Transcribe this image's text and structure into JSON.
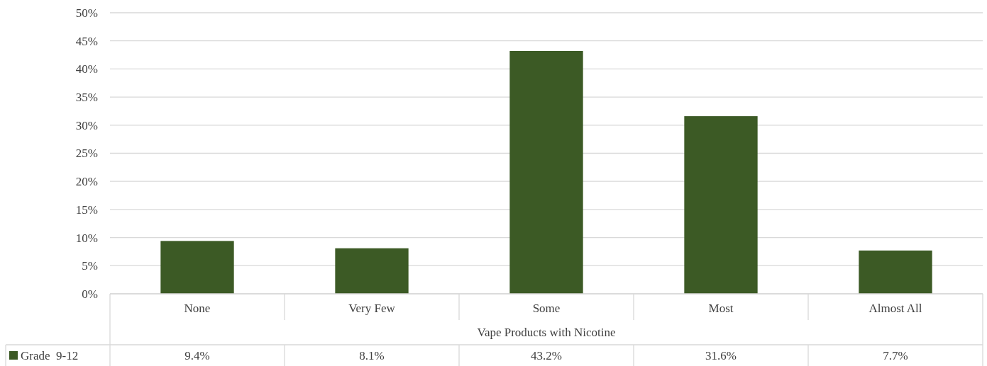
{
  "chart_data": {
    "type": "bar",
    "xlabel": "Vape Products with Nicotine",
    "categories": [
      "None",
      "Very Few",
      "Some",
      "Most",
      "Almost All"
    ],
    "series": [
      {
        "name": "Grade  9-12",
        "color": "#3c5a25",
        "values": [
          9.4,
          8.1,
          43.2,
          31.6,
          7.7
        ],
        "value_labels": [
          "9.4%",
          "8.1%",
          "43.2%",
          "31.6%",
          "7.7%"
        ]
      }
    ],
    "ylim": [
      0,
      50
    ],
    "yticks": [
      {
        "value": 0,
        "label": "0%"
      },
      {
        "value": 5,
        "label": "5%"
      },
      {
        "value": 10,
        "label": "10%"
      },
      {
        "value": 15,
        "label": "15%"
      },
      {
        "value": 20,
        "label": "20%"
      },
      {
        "value": 25,
        "label": "25%"
      },
      {
        "value": 30,
        "label": "30%"
      },
      {
        "value": 35,
        "label": "35%"
      },
      {
        "value": 40,
        "label": "40%"
      },
      {
        "value": 45,
        "label": "45%"
      },
      {
        "value": 50,
        "label": "50%"
      }
    ],
    "grid": "y",
    "legend": "bottom"
  }
}
